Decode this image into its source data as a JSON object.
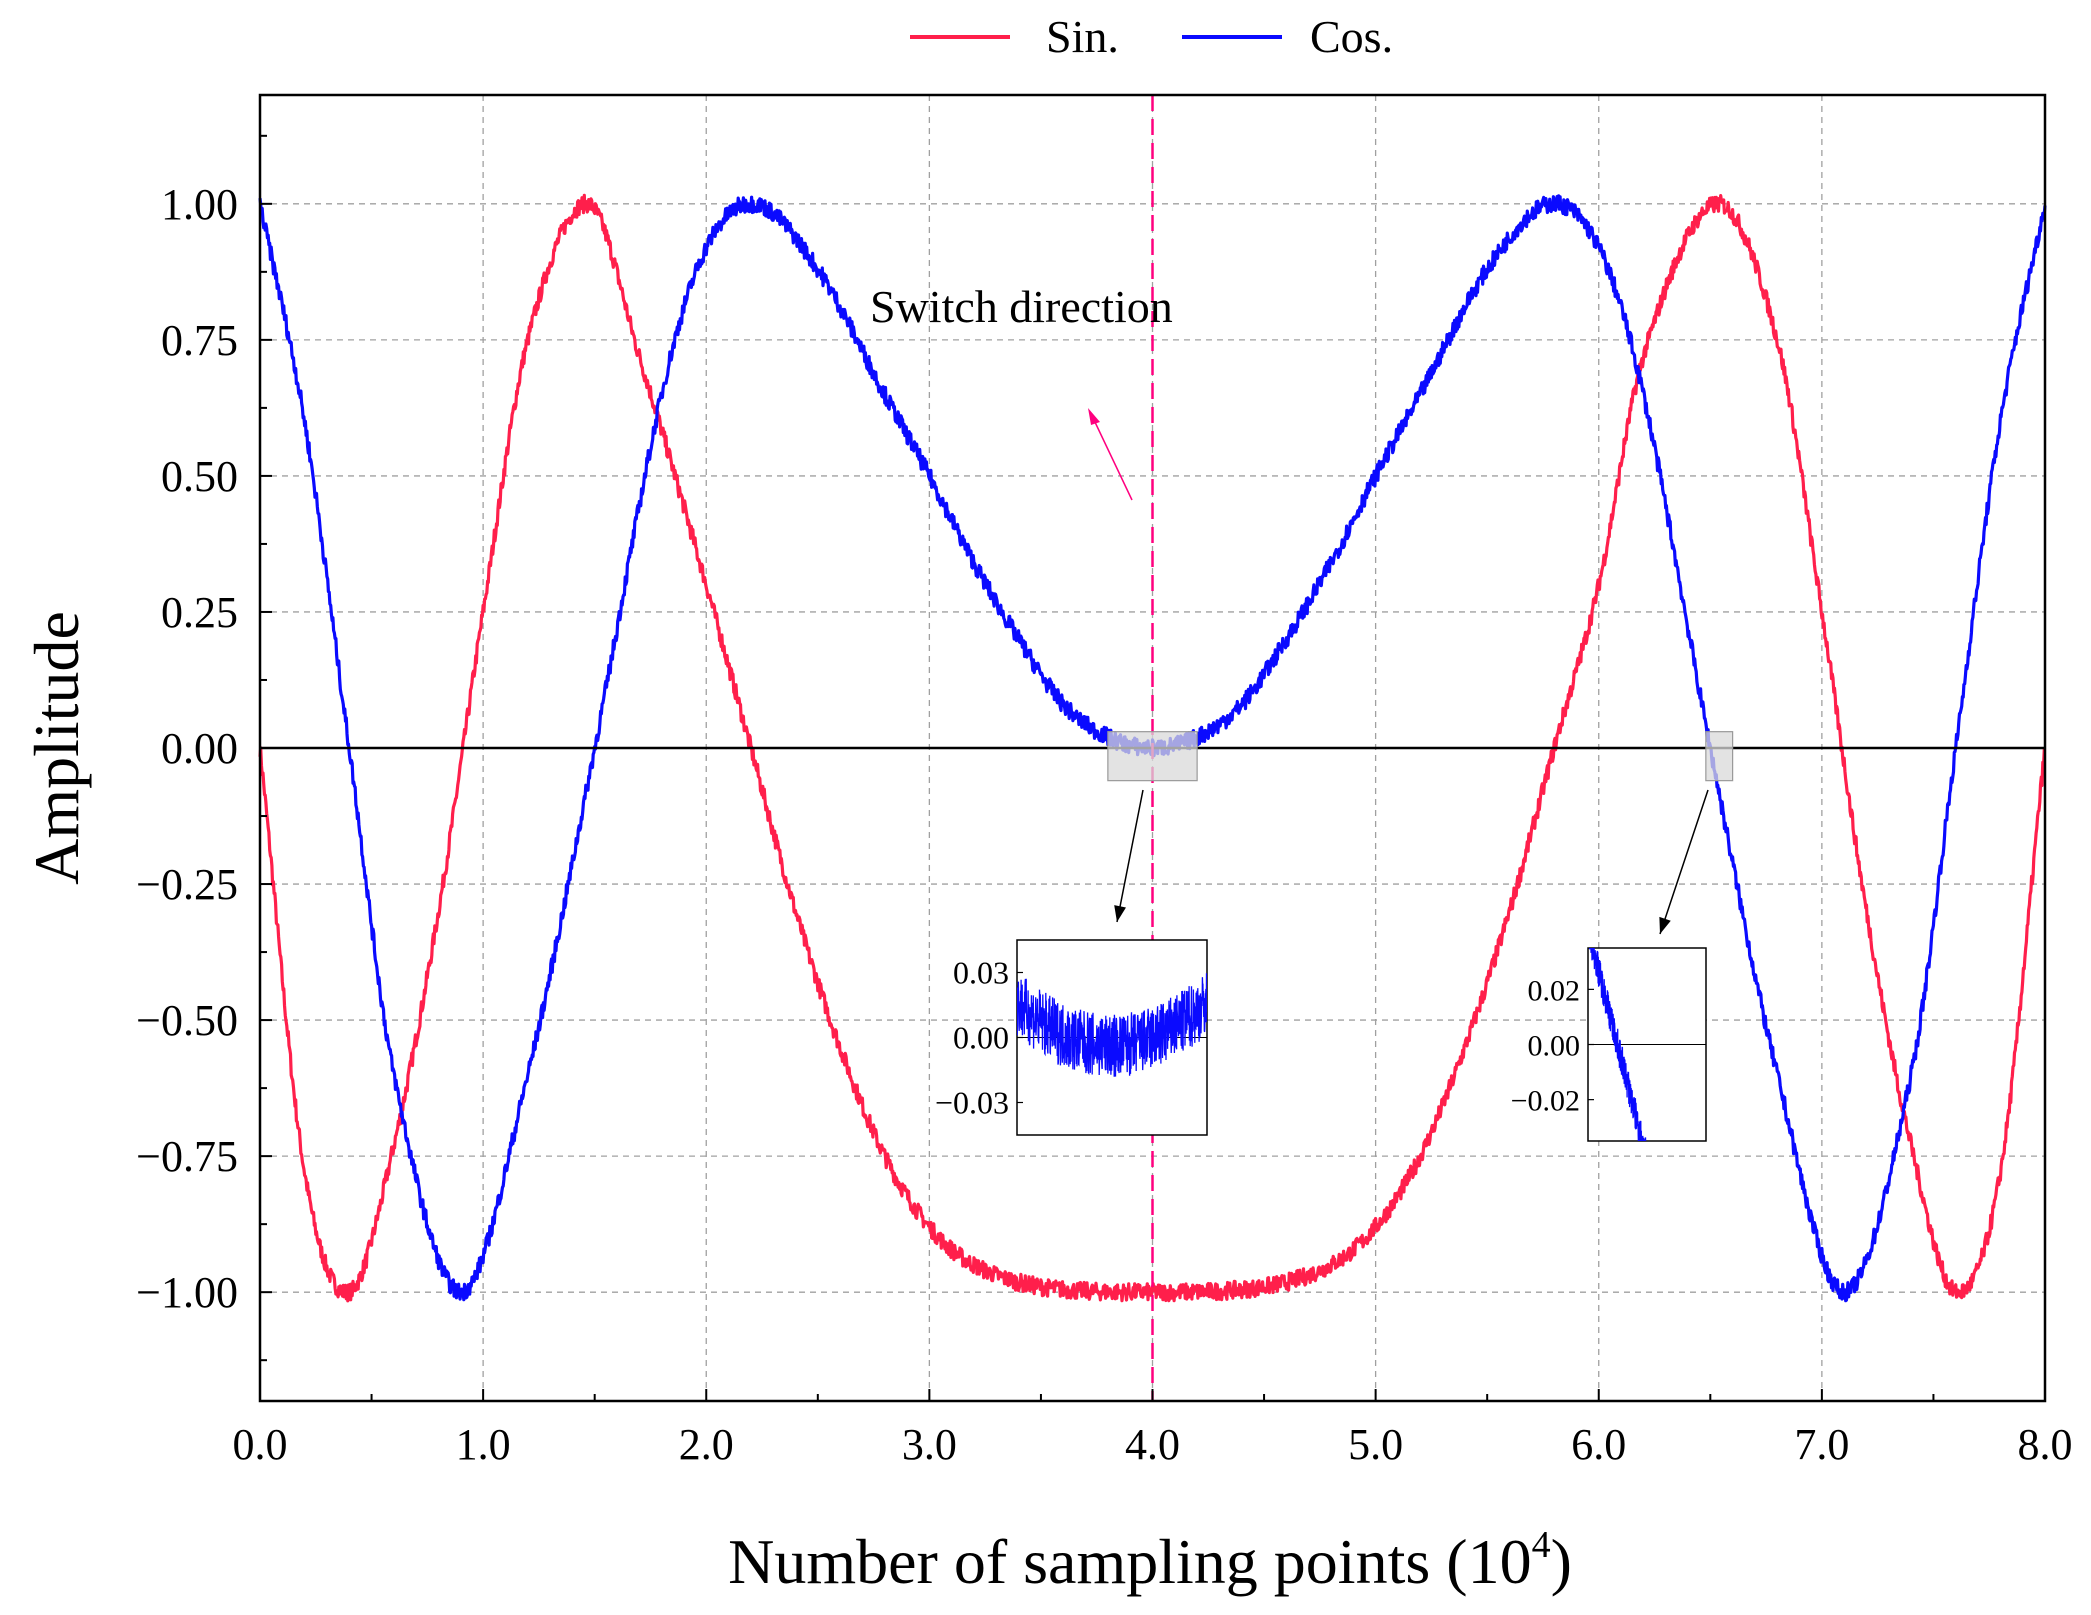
{
  "legend": {
    "sin_label": "Sin.",
    "cos_label": "Cos."
  },
  "annotation": {
    "switch_text": "Switch direction"
  },
  "colors": {
    "sin": "#ff1f4b",
    "cos": "#0a0aff",
    "switch_line": "#ff007f",
    "grid": "#a0a0a0",
    "axis": "#000000",
    "zoom_box": "#d9d9d9"
  },
  "chart_data": {
    "type": "line",
    "title": "",
    "xlabel_main": "Number of sampling points (10",
    "xlabel_sup": "4",
    "xlabel_close": ")",
    "ylabel": "Amplitude",
    "xlim": [
      0,
      8
    ],
    "ylim": [
      -1.2,
      1.2
    ],
    "x_ticks": [
      0,
      1,
      2,
      3,
      4,
      5,
      6,
      7,
      8
    ],
    "x_tick_labels": [
      "0.0",
      "1.0",
      "2.0",
      "3.0",
      "4.0",
      "5.0",
      "6.0",
      "7.0",
      "8.0"
    ],
    "y_ticks": [
      1,
      0.75,
      0.5,
      0.25,
      0,
      -0.25,
      -0.5,
      -0.75,
      -1
    ],
    "y_tick_labels": [
      "1.00",
      "0.75",
      "0.50",
      "0.25",
      "0.00",
      "−0.25",
      "−0.50",
      "−0.75",
      "−1.00"
    ],
    "grid": true,
    "legend_position": "top-center",
    "switch_x": 4.0,
    "series": [
      {
        "name": "Sin.",
        "x": [
          0,
          0.2,
          0.4,
          0.6,
          0.8,
          1.0,
          1.2,
          1.47,
          1.7,
          2.0,
          2.2,
          2.4,
          2.6,
          2.8,
          3.0,
          3.2,
          3.5,
          4.0,
          4.5,
          4.8,
          5.0,
          5.2,
          5.4,
          5.6,
          5.8,
          6.0,
          6.2,
          6.53,
          6.8,
          7.0,
          7.2,
          7.4,
          7.6,
          7.8,
          8.0
        ],
        "values": [
          0,
          -0.78,
          -1.0,
          -0.73,
          -0.3,
          0.25,
          0.75,
          1.0,
          0.72,
          0.3,
          0.0,
          -0.3,
          -0.55,
          -0.75,
          -0.88,
          -0.95,
          -0.99,
          -1.0,
          -0.99,
          -0.95,
          -0.88,
          -0.75,
          -0.55,
          -0.3,
          0.0,
          0.3,
          0.72,
          1.0,
          0.75,
          0.25,
          -0.3,
          -0.73,
          -1.0,
          -0.78,
          0
        ]
      },
      {
        "name": "Cos.",
        "x": [
          0,
          0.2,
          0.4,
          0.6,
          0.9,
          1.2,
          1.5,
          1.8,
          2.0,
          2.22,
          2.5,
          2.8,
          3.0,
          3.2,
          3.4,
          3.6,
          3.8,
          4.0,
          4.2,
          4.4,
          4.6,
          4.8,
          5.0,
          5.2,
          5.5,
          5.78,
          6.0,
          6.2,
          6.5,
          6.8,
          7.1,
          7.4,
          7.6,
          7.8,
          8.0
        ],
        "values": [
          1.0,
          0.6,
          0.0,
          -0.6,
          -1.0,
          -0.6,
          0.0,
          0.65,
          0.92,
          1.0,
          0.88,
          0.65,
          0.5,
          0.34,
          0.2,
          0.08,
          0.02,
          0.0,
          0.02,
          0.08,
          0.2,
          0.34,
          0.5,
          0.65,
          0.88,
          1.0,
          0.92,
          0.65,
          0.0,
          -0.6,
          -1.0,
          -0.6,
          0.0,
          0.6,
          1.0
        ]
      }
    ],
    "insets": [
      {
        "name": "inset-switch",
        "series": "Cos.",
        "xlim": [
          3.8,
          4.2
        ],
        "ylim": [
          -0.045,
          0.045
        ],
        "y_ticks": [
          0.03,
          0,
          -0.03
        ],
        "y_tick_labels": [
          "0.03",
          "0.00",
          "−0.03"
        ],
        "source_x_range": [
          3.8,
          4.2
        ],
        "source_y_range": [
          -0.06,
          0.03
        ]
      },
      {
        "name": "inset-crossing",
        "series": "Cos.",
        "xlim": [
          6.48,
          6.56
        ],
        "ylim": [
          -0.035,
          0.035
        ],
        "y_ticks": [
          0.02,
          0,
          -0.02
        ],
        "y_tick_labels": [
          "0.02",
          "0.00",
          "−0.02"
        ],
        "source_x_range": [
          6.48,
          6.6
        ],
        "source_y_range": [
          -0.06,
          0.03
        ]
      }
    ]
  }
}
